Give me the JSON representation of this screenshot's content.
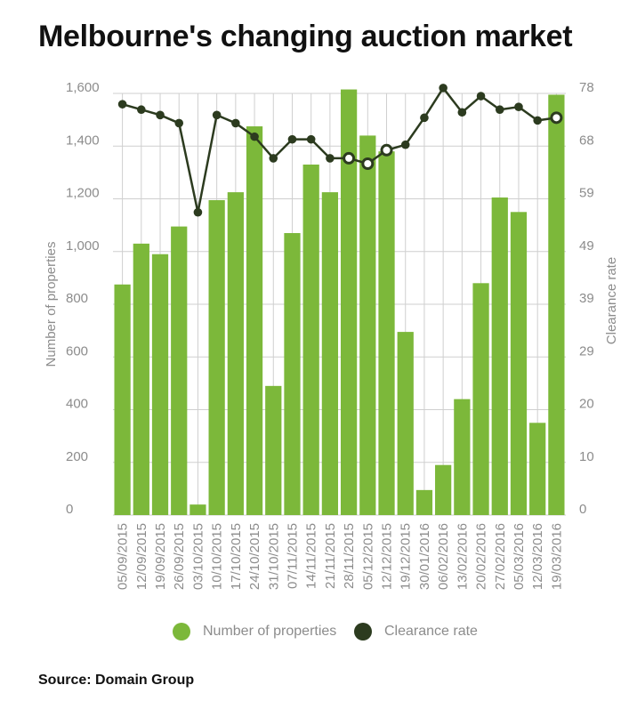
{
  "title": "Melbourne's changing auction market",
  "source": "Source: Domain Group",
  "colors": {
    "bars": "#7cb83a",
    "line": "#2c3b1f",
    "grid": "#cfcfcf",
    "text": "#8c8c8c",
    "marker_fill": "#ffffff"
  },
  "legend": [
    {
      "label": "Number of properties",
      "color": "#7cb83a",
      "name": "legend-number-of-properties"
    },
    {
      "label": "Clearance rate",
      "color": "#2c3b1f",
      "name": "legend-clearance-rate"
    }
  ],
  "chart_data": {
    "type": "bar",
    "title": "Melbourne's changing auction market",
    "categories": [
      "05/09/2015",
      "12/09/2015",
      "19/09/2015",
      "26/09/2015",
      "03/10/2015",
      "10/10/2015",
      "17/10/2015",
      "24/10/2015",
      "31/10/2015",
      "07/11/2015",
      "14/11/2015",
      "21/11/2015",
      "28/11/2015",
      "05/12/2015",
      "12/12/2015",
      "19/12/2015",
      "30/01/2016",
      "06/02/2016",
      "13/02/2016",
      "20/02/2016",
      "27/02/2016",
      "05/03/2016",
      "12/03/2016",
      "19/03/2016"
    ],
    "series": [
      {
        "name": "Number of properties",
        "type": "bar",
        "axis": "left",
        "values": [
          875,
          1030,
          990,
          1095,
          40,
          1195,
          1225,
          1475,
          490,
          1070,
          1330,
          1225,
          1615,
          1440,
          1380,
          695,
          95,
          190,
          440,
          880,
          1205,
          1150,
          350,
          1595
        ]
      },
      {
        "name": "Clearance rate",
        "type": "line",
        "axis": "right",
        "values": [
          76,
          75,
          74,
          72.5,
          56,
          74,
          72.5,
          70,
          66,
          69.5,
          69.5,
          66,
          66,
          65,
          67.5,
          68.5,
          73.5,
          79,
          74.5,
          77.5,
          75,
          75.5,
          73,
          73.5
        ],
        "hollow_points": [
          12,
          13,
          14,
          23
        ]
      }
    ],
    "ylabel": "Number of properties",
    "ylim": [
      0,
      1600
    ],
    "yticks": [
      "0",
      "200",
      "400",
      "600",
      "800",
      "1,000",
      "1,200",
      "1,400",
      "1,600"
    ],
    "y2label": "Clearance rate",
    "y2lim": [
      0,
      78
    ],
    "y2ticks": [
      "0",
      "10",
      "20",
      "29",
      "39",
      "49",
      "59",
      "68",
      "78"
    ],
    "grid": true,
    "legend_position": "bottom"
  }
}
